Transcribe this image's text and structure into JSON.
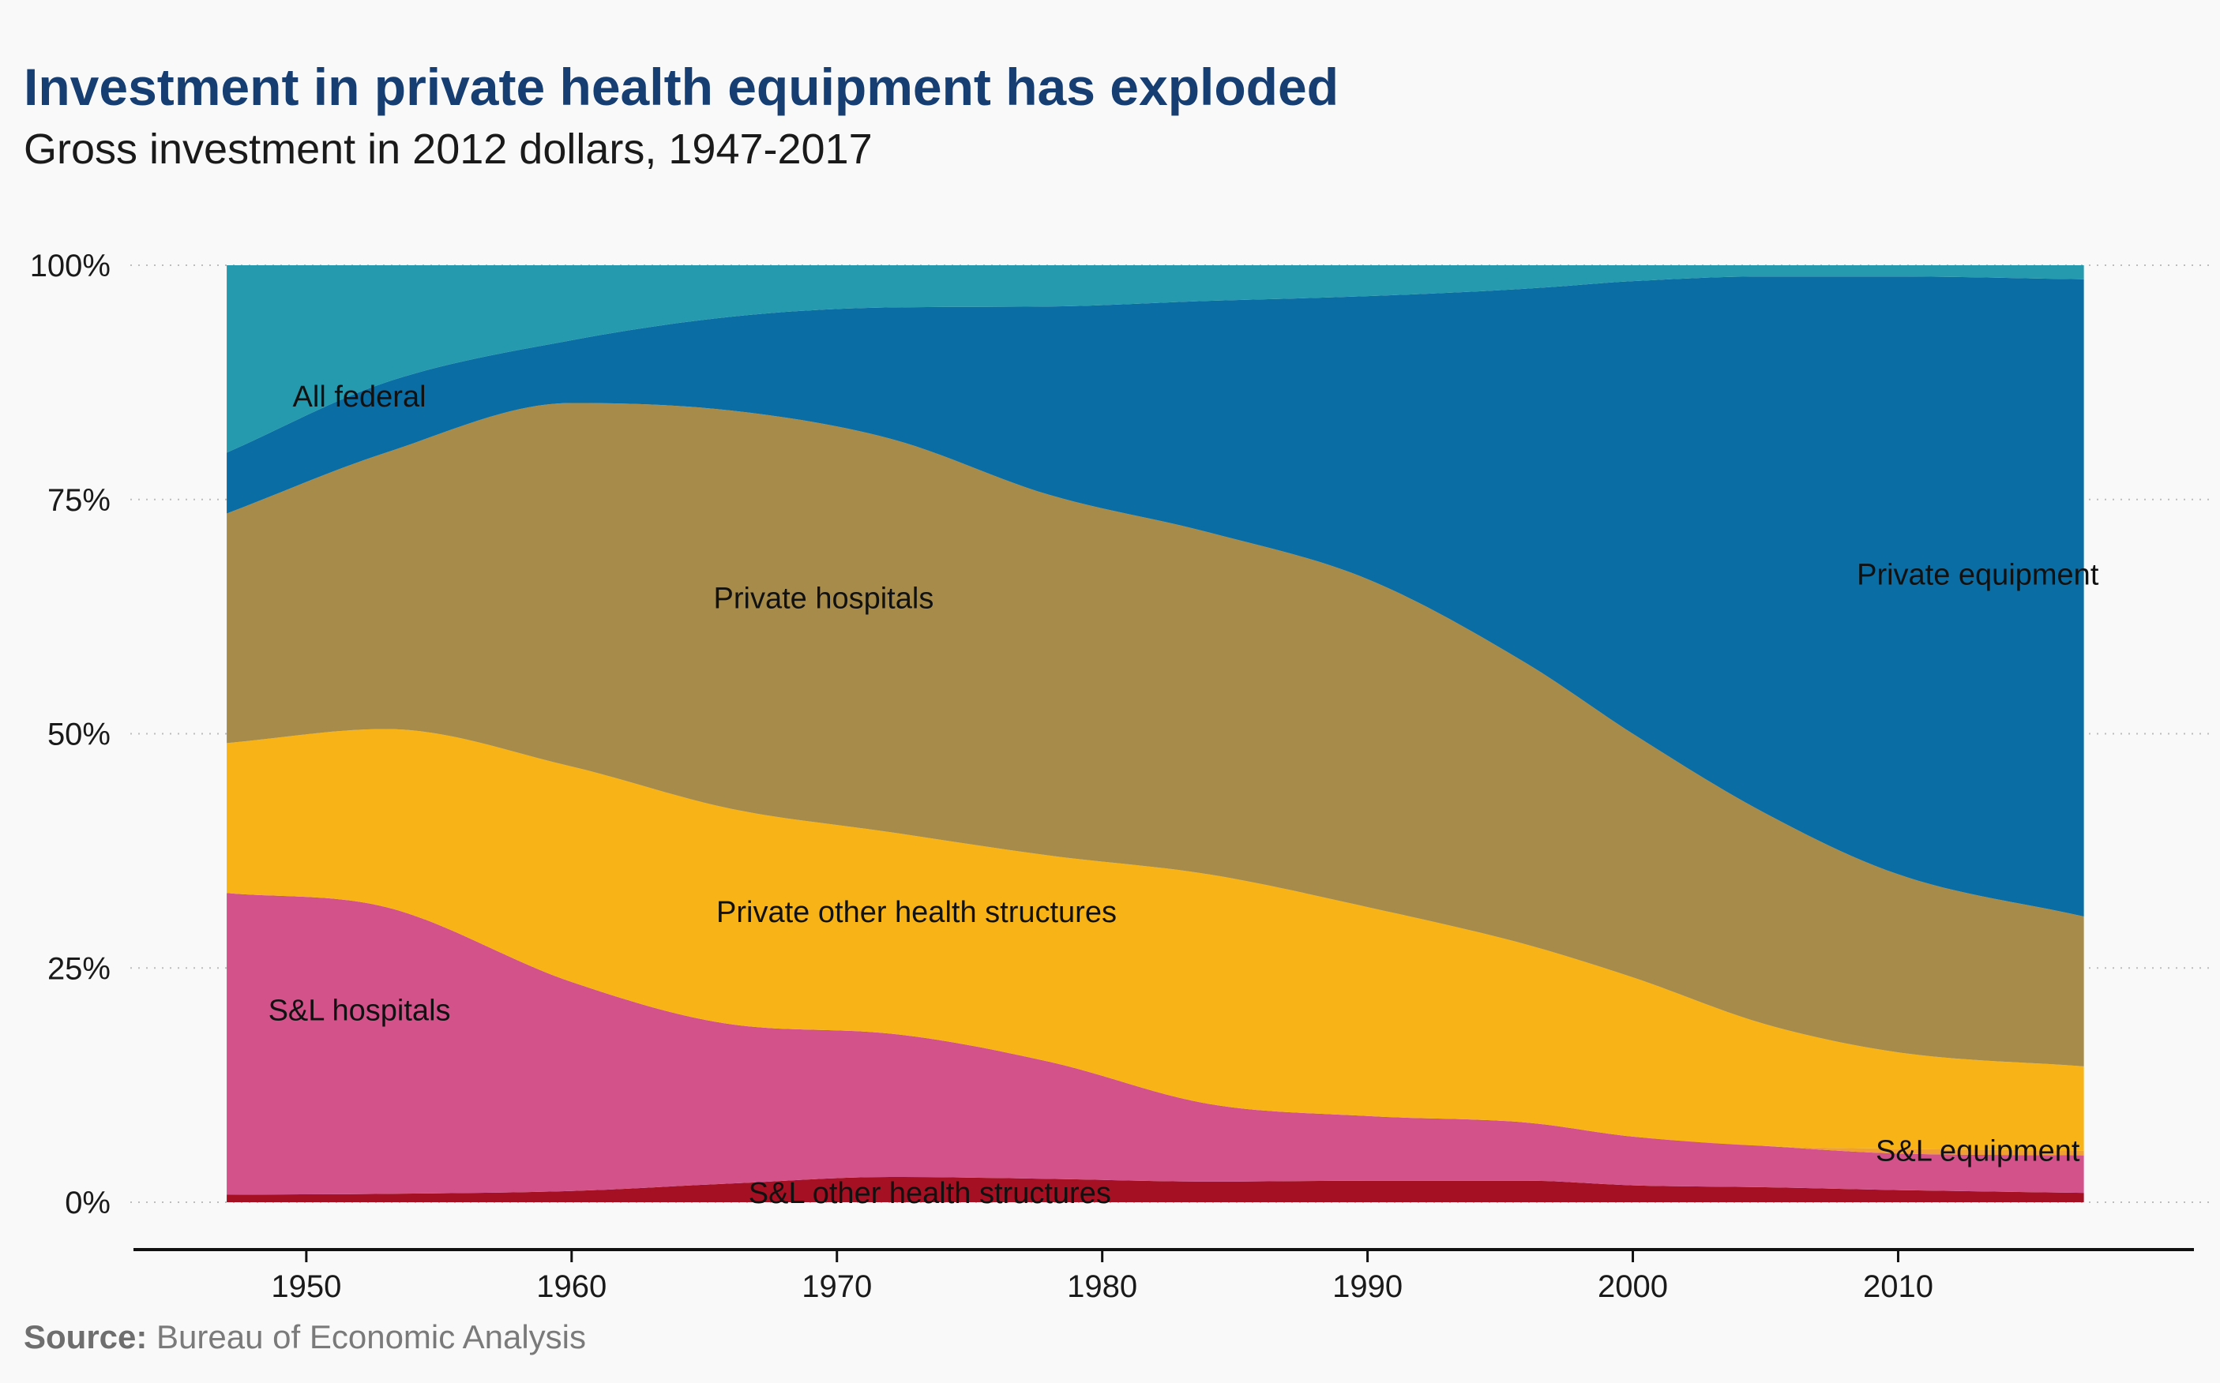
{
  "title": "Investment in private health equipment has exploded",
  "subtitle": "Gross investment in 2012 dollars, 1947-2017",
  "source": {
    "label": "Source:",
    "text": " Bureau of Economic Analysis"
  },
  "chart_data": {
    "type": "area",
    "stacked": true,
    "normalized": true,
    "title": "Investment in private health equipment has exploded",
    "subtitle": "Gross investment in 2012 dollars, 1947-2017",
    "xlabel": "",
    "ylabel": "",
    "xlim": [
      1943.5,
      2021
    ],
    "ylim": [
      0,
      100
    ],
    "x_ticks": [
      1950,
      1960,
      1970,
      1980,
      1990,
      2000,
      2010
    ],
    "y_ticks": [
      {
        "value": 0,
        "label": "0%"
      },
      {
        "value": 25,
        "label": "25%"
      },
      {
        "value": 50,
        "label": "50%"
      },
      {
        "value": 75,
        "label": "75%"
      },
      {
        "value": 100,
        "label": "100%"
      }
    ],
    "grid": "horizontal-dotted",
    "x": [
      1947,
      1953,
      1960,
      1966,
      1972,
      1978,
      1984,
      1990,
      1996,
      2000,
      2005,
      2010,
      2017
    ],
    "series_note": "values are cumulative top boundaries (percent of total) of each stacked layer, bottom to top",
    "series": [
      {
        "name": "S&L other health structures",
        "color": "#a51122",
        "top": [
          0.8,
          0.9,
          1.2,
          2.0,
          2.7,
          2.5,
          2.2,
          2.3,
          2.3,
          1.8,
          1.6,
          1.3,
          1.0
        ]
      },
      {
        "name": "S&L hospitals",
        "color": "#d4528a",
        "top": [
          33.0,
          31.5,
          23.5,
          19.0,
          18.0,
          15.0,
          10.5,
          9.2,
          8.5,
          7.0,
          6.0,
          5.2,
          5.0
        ]
      },
      {
        "name": "S&L equipment",
        "color": "#f0a030",
        "top": [
          33.0,
          31.5,
          23.5,
          19.0,
          18.0,
          15.0,
          10.5,
          9.2,
          8.5,
          7.0,
          6.0,
          5.7,
          5.5
        ]
      },
      {
        "name": "Private other health structures",
        "color": "#f8b316",
        "top": [
          49.0,
          50.5,
          46.5,
          42.0,
          39.5,
          37.0,
          35.0,
          31.5,
          27.5,
          24.0,
          19.0,
          16.0,
          14.5
        ]
      },
      {
        "name": "Private hospitals",
        "color": "#a78b4a",
        "top": [
          73.5,
          80.0,
          85.3,
          84.5,
          81.5,
          75.5,
          71.5,
          66.5,
          57.5,
          50.0,
          41.5,
          35.0,
          30.5
        ]
      },
      {
        "name": "Private equipment",
        "color": "#0a6da3",
        "top": [
          80.0,
          87.5,
          92.0,
          94.5,
          95.5,
          95.6,
          96.2,
          96.7,
          97.5,
          98.3,
          98.8,
          98.8,
          98.5
        ]
      },
      {
        "name": "All federal",
        "color": "#259aaf",
        "top": [
          100,
          100,
          100,
          100,
          100,
          100,
          100,
          100,
          100,
          100,
          100,
          100,
          100
        ]
      }
    ],
    "annotations": [
      {
        "text": "All federal",
        "x": 1952,
        "y": 86
      },
      {
        "text": "Private hospitals",
        "x": 1969.5,
        "y": 64.5
      },
      {
        "text": "Private other health structures",
        "x": 1973,
        "y": 31
      },
      {
        "text": "S&L hospitals",
        "x": 1952,
        "y": 20.5
      },
      {
        "text": "S&L other health structures",
        "x": 1973.5,
        "y": 1
      },
      {
        "text": "Private equipment",
        "x": 2013,
        "y": 67
      },
      {
        "text": "S&L equipment",
        "x": 2013,
        "y": 5.5
      }
    ]
  }
}
